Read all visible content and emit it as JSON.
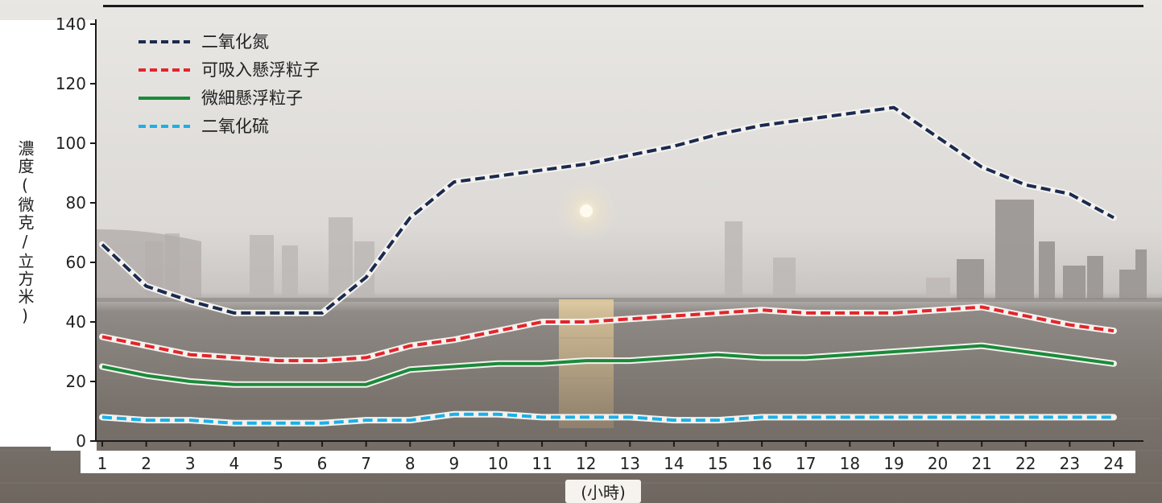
{
  "chart_data": {
    "type": "line",
    "title": "",
    "xlabel": "(小時)",
    "ylabel": "濃度(微克/立方米)",
    "x": [
      1,
      2,
      3,
      4,
      5,
      6,
      7,
      8,
      9,
      10,
      11,
      12,
      13,
      14,
      15,
      16,
      17,
      18,
      19,
      20,
      21,
      22,
      23,
      24
    ],
    "xlim": [
      1,
      24
    ],
    "ylim": [
      0,
      140
    ],
    "yticks": [
      0,
      20,
      40,
      60,
      80,
      100,
      120,
      140
    ],
    "legend_position": "top-left",
    "grid": false,
    "series": [
      {
        "name": "二氧化氮",
        "color": "#1b2a4f",
        "style": "dashed",
        "values": [
          66,
          52,
          47,
          43,
          43,
          43,
          55,
          75,
          87,
          89,
          91,
          93,
          96,
          99,
          103,
          106,
          108,
          110,
          112,
          102,
          92,
          86,
          83,
          75
        ]
      },
      {
        "name": "可吸入懸浮粒子",
        "color": "#e3242b",
        "style": "dashed",
        "values": [
          35,
          32,
          29,
          28,
          27,
          27,
          28,
          32,
          34,
          37,
          40,
          40,
          41,
          42,
          43,
          44,
          43,
          43,
          43,
          44,
          45,
          42,
          39,
          37
        ]
      },
      {
        "name": "微細懸浮粒子",
        "color": "#1a8a3a",
        "style": "solid",
        "values": [
          25,
          22,
          20,
          19,
          19,
          19,
          19,
          24,
          25,
          26,
          26,
          27,
          27,
          28,
          29,
          28,
          28,
          29,
          30,
          31,
          32,
          30,
          28,
          26
        ]
      },
      {
        "name": "二氧化硫",
        "color": "#1ab0e8",
        "style": "dashed",
        "values": [
          8,
          7,
          7,
          6,
          6,
          6,
          7,
          7,
          9,
          9,
          8,
          8,
          8,
          7,
          7,
          8,
          8,
          8,
          8,
          8,
          8,
          8,
          8,
          8
        ]
      }
    ]
  }
}
